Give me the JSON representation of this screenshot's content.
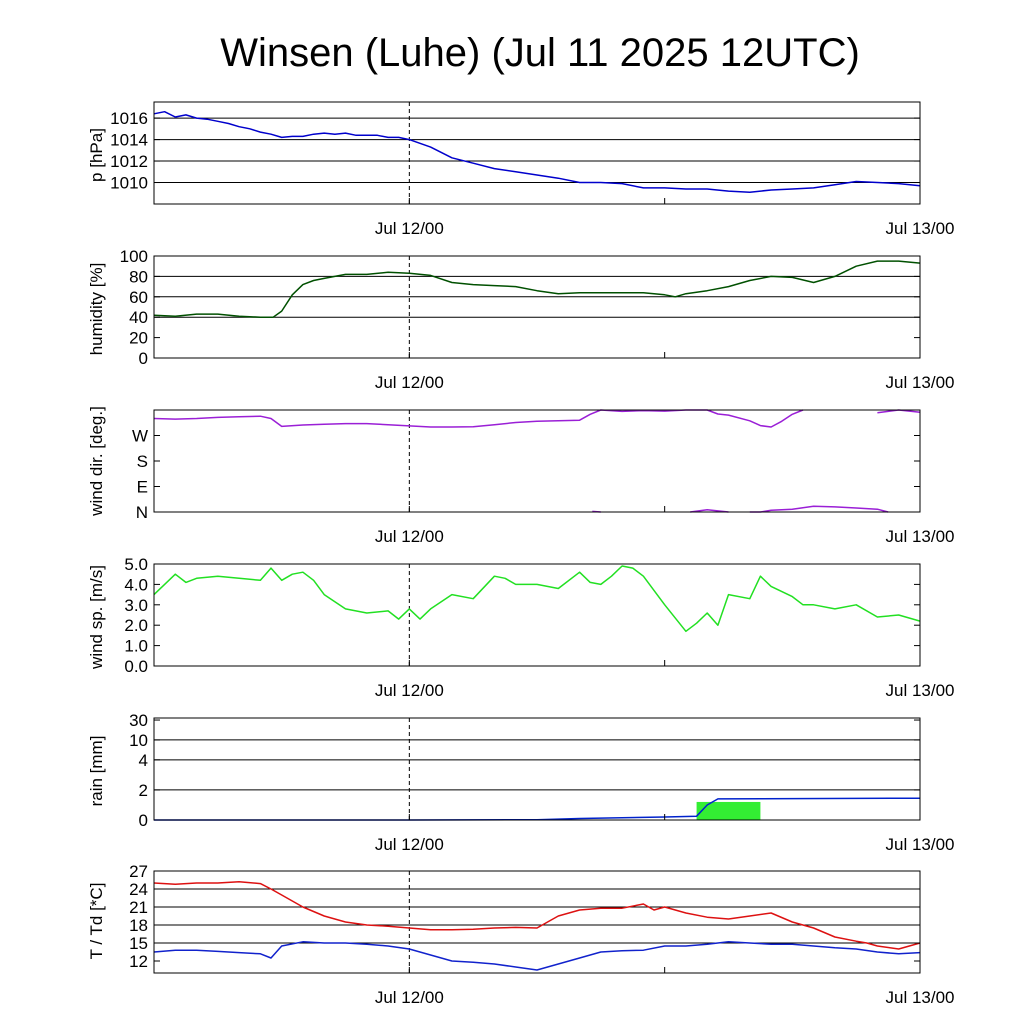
{
  "title": "Winsen (Luhe) (Jul 11 2025 12UTC)",
  "x_tick_labels": [
    "Jul 12/00",
    "Jul 13/00"
  ],
  "colors": {
    "pressure": "#0000cc",
    "humidity": "#005000",
    "wind_dir": "#9a1fd6",
    "wind_speed": "#22e022",
    "rain_accum": "#0022cc",
    "rain_bar": "#33ee33",
    "temperature": "#dd1111",
    "dewpoint": "#1122cc"
  },
  "chart_data": [
    {
      "id": "pressure",
      "type": "line",
      "ylabel": "p [hPa]",
      "ylim": [
        1008,
        1017.5
      ],
      "ticks": [
        1010,
        1012,
        1014,
        1016
      ],
      "tick_labels": [
        "1010",
        "1012",
        "1014",
        "1016"
      ],
      "gridlines": [
        1010,
        1012,
        1014,
        1016
      ],
      "xlim": [
        0,
        36
      ],
      "xlabel": "",
      "series": [
        {
          "key": "pressure",
          "x": [
            0,
            0.5,
            1,
            1.5,
            2,
            2.5,
            3,
            3.5,
            4,
            4.5,
            5,
            5.5,
            6,
            6.5,
            7,
            7.5,
            8,
            8.5,
            9,
            9.5,
            10,
            10.5,
            11,
            11.5,
            12,
            13,
            14,
            15,
            16,
            17,
            18,
            19,
            20,
            21,
            22,
            23,
            24,
            25,
            26,
            27,
            28,
            29,
            30,
            31,
            32,
            33,
            34,
            35,
            36
          ],
          "y": [
            1016.4,
            1016.6,
            1016.1,
            1016.3,
            1016.0,
            1015.9,
            1015.7,
            1015.5,
            1015.2,
            1015.0,
            1014.7,
            1014.5,
            1014.2,
            1014.3,
            1014.3,
            1014.5,
            1014.6,
            1014.5,
            1014.6,
            1014.4,
            1014.4,
            1014.4,
            1014.2,
            1014.2,
            1014.0,
            1013.3,
            1012.3,
            1011.8,
            1011.3,
            1011.0,
            1010.7,
            1010.4,
            1010.0,
            1010.0,
            1009.9,
            1009.5,
            1009.5,
            1009.4,
            1009.4,
            1009.2,
            1009.1,
            1009.3,
            1009.4,
            1009.5,
            1009.8,
            1010.1,
            1010.0,
            1009.9,
            1009.7
          ]
        }
      ]
    },
    {
      "id": "humidity",
      "type": "line",
      "ylabel": "humidity [%]",
      "ylim": [
        0,
        100
      ],
      "ticks": [
        0,
        20,
        40,
        60,
        80,
        100
      ],
      "tick_labels": [
        "0",
        "20",
        "40",
        "60",
        "80",
        "100"
      ],
      "gridlines": [
        40,
        60,
        80
      ],
      "xlim": [
        0,
        36
      ],
      "xlabel": "",
      "series": [
        {
          "key": "humidity",
          "x": [
            0,
            1,
            2,
            3,
            4,
            5,
            5.6,
            6,
            6.5,
            7,
            7.5,
            8,
            9,
            10,
            11,
            12,
            13,
            14,
            15,
            16,
            17,
            18,
            19,
            20,
            21,
            22,
            23,
            24,
            24.5,
            25,
            26,
            27,
            28,
            29,
            30,
            31,
            32,
            33,
            34,
            35,
            36
          ],
          "y": [
            42,
            41,
            43,
            43,
            41,
            40,
            40,
            46,
            62,
            72,
            76,
            78,
            82,
            82,
            84,
            83,
            81,
            74,
            72,
            71,
            70,
            66,
            63,
            64,
            64,
            64,
            64,
            62,
            60,
            63,
            66,
            70,
            76,
            80,
            79,
            74,
            80,
            90,
            95,
            95,
            93
          ]
        }
      ]
    },
    {
      "id": "wind_dir",
      "type": "line",
      "ylabel": "wind dir. [deg.]",
      "ylim": [
        0,
        360
      ],
      "ticks": [
        0,
        90,
        180,
        270
      ],
      "tick_labels": [
        "N",
        "E",
        "S",
        "W"
      ],
      "gridlines": [],
      "xlim": [
        0,
        36
      ],
      "xlabel": "",
      "series": [
        {
          "key": "wind_dir",
          "x": [
            0,
            1,
            2,
            3,
            4,
            5,
            5.5,
            6,
            7,
            8,
            9,
            10,
            11,
            12,
            13,
            14,
            15,
            16,
            17,
            18,
            19,
            20,
            20.5,
            21,
            22,
            23,
            24,
            25,
            26,
            26.5,
            27,
            28,
            28.5,
            29,
            29.5,
            30,
            30.5
          ],
          "y": [
            330,
            328,
            330,
            334,
            336,
            338,
            330,
            302,
            307,
            310,
            312,
            312,
            308,
            304,
            300,
            300,
            301,
            308,
            316,
            320,
            322,
            324,
            345,
            360,
            355,
            358,
            356,
            360,
            360,
            346,
            342,
            322,
            305,
            300,
            320,
            345,
            360
          ]
        },
        {
          "key": "wind_dir",
          "x": [
            34,
            34.5,
            35,
            35.5,
            36
          ],
          "y": [
            350,
            355,
            362,
            356,
            352
          ]
        },
        {
          "key": "wind_dir",
          "x": [
            20.6,
            21
          ],
          "y": [
            2,
            0
          ]
        },
        {
          "key": "wind_dir",
          "x": [
            25.2,
            26,
            27
          ],
          "y": [
            0,
            8,
            0
          ]
        },
        {
          "key": "wind_dir",
          "x": [
            28,
            28.5,
            29,
            30,
            31,
            32,
            33,
            34,
            34.5
          ],
          "y": [
            0,
            0,
            6,
            10,
            20,
            18,
            14,
            10,
            0
          ]
        }
      ]
    },
    {
      "id": "wind_speed",
      "type": "line",
      "ylabel": "wind sp. [m/s]",
      "ylim": [
        0,
        5
      ],
      "ticks": [
        0,
        1,
        2,
        3,
        4,
        5
      ],
      "tick_labels": [
        "0.0",
        "1.0",
        "2.0",
        "3.0",
        "4.0",
        "5.0"
      ],
      "gridlines": [],
      "xlim": [
        0,
        36
      ],
      "xlabel": "",
      "series": [
        {
          "key": "wind_speed",
          "x": [
            0,
            0.5,
            1,
            1.5,
            2,
            3,
            4,
            5,
            5.5,
            6,
            6.5,
            7,
            7.5,
            8,
            9,
            10,
            11,
            11.5,
            12,
            12.5,
            13,
            14,
            15,
            16,
            16.5,
            17,
            18,
            19,
            20,
            20.5,
            21,
            21.5,
            22,
            22.5,
            23,
            24,
            25,
            25.5,
            26,
            26.5,
            27,
            28,
            28.5,
            29,
            30,
            30.5,
            31,
            32,
            33,
            34,
            35,
            36
          ],
          "y": [
            3.5,
            4.0,
            4.5,
            4.1,
            4.3,
            4.4,
            4.3,
            4.2,
            4.8,
            4.2,
            4.5,
            4.6,
            4.2,
            3.5,
            2.8,
            2.6,
            2.7,
            2.3,
            2.8,
            2.3,
            2.8,
            3.5,
            3.3,
            4.4,
            4.3,
            4.0,
            4.0,
            3.8,
            4.6,
            4.1,
            4.0,
            4.4,
            4.9,
            4.8,
            4.4,
            3.0,
            1.7,
            2.1,
            2.6,
            2.0,
            3.5,
            3.3,
            4.4,
            3.9,
            3.4,
            3.0,
            3.0,
            2.8,
            3.0,
            2.4,
            2.5,
            2.2
          ]
        }
      ]
    },
    {
      "id": "rain",
      "type": "bar+line",
      "ylabel": "rain [mm]",
      "scale": "custom",
      "ticks": [
        0,
        2,
        4,
        10,
        30
      ],
      "tick_labels": [
        "0",
        "2",
        "4",
        "10",
        "30"
      ],
      "gridlines": [
        2,
        4,
        10
      ],
      "xlim": [
        0,
        36
      ],
      "xlabel": "",
      "bars": [
        {
          "x0": 25.5,
          "x1": 28.5,
          "value": 1.2
        }
      ],
      "series": [
        {
          "key": "rain_accum",
          "x": [
            0,
            12,
            18,
            20,
            24,
            25.5,
            26,
            26.5,
            36
          ],
          "y": [
            0,
            0,
            0.02,
            0.1,
            0.2,
            0.25,
            1.0,
            1.4,
            1.45
          ]
        }
      ]
    },
    {
      "id": "temperature",
      "type": "line",
      "ylabel": "T / Td [*C]",
      "ylim": [
        10,
        27
      ],
      "ticks": [
        12,
        15,
        18,
        21,
        24,
        27
      ],
      "tick_labels": [
        "12",
        "15",
        "18",
        "21",
        "24",
        "27"
      ],
      "gridlines": [
        15,
        18,
        21,
        24
      ],
      "xlim": [
        0,
        36
      ],
      "xlabel": "",
      "series": [
        {
          "key": "temperature",
          "x": [
            0,
            1,
            2,
            3,
            4,
            5,
            5.5,
            6,
            6.5,
            7,
            8,
            9,
            10,
            11,
            12,
            13,
            14,
            15,
            16,
            17,
            18,
            18.5,
            19,
            20,
            21,
            22,
            23,
            23.5,
            24,
            25,
            26,
            27,
            28,
            29,
            30,
            31,
            32,
            33,
            33.5,
            34,
            35,
            36
          ],
          "y": [
            25.0,
            24.8,
            25.0,
            25.0,
            25.2,
            24.9,
            24.0,
            23.0,
            22.0,
            21.0,
            19.5,
            18.5,
            18.0,
            17.8,
            17.5,
            17.2,
            17.2,
            17.3,
            17.5,
            17.6,
            17.5,
            18.5,
            19.5,
            20.5,
            20.8,
            20.8,
            21.5,
            20.5,
            21.0,
            20.0,
            19.3,
            19.0,
            19.5,
            20.0,
            18.5,
            17.5,
            16.0,
            15.3,
            15.0,
            14.5,
            14.0,
            15.0
          ]
        },
        {
          "key": "dewpoint",
          "x": [
            0,
            1,
            2,
            3,
            4,
            5,
            5.5,
            6,
            7,
            8,
            9,
            10,
            11,
            12,
            13,
            14,
            15,
            16,
            17,
            18,
            19,
            20,
            21,
            22,
            23,
            24,
            25,
            26,
            27,
            28,
            29,
            30,
            31,
            32,
            33,
            34,
            35,
            36
          ],
          "y": [
            13.5,
            13.8,
            13.8,
            13.6,
            13.4,
            13.2,
            12.5,
            14.5,
            15.2,
            15.0,
            15.0,
            14.8,
            14.5,
            14.0,
            13.0,
            12.0,
            11.8,
            11.5,
            11.0,
            10.5,
            11.5,
            12.5,
            13.5,
            13.7,
            13.8,
            14.5,
            14.5,
            14.8,
            15.2,
            15.0,
            14.8,
            14.8,
            14.5,
            14.2,
            14.0,
            13.5,
            13.2,
            13.4
          ]
        }
      ]
    }
  ]
}
